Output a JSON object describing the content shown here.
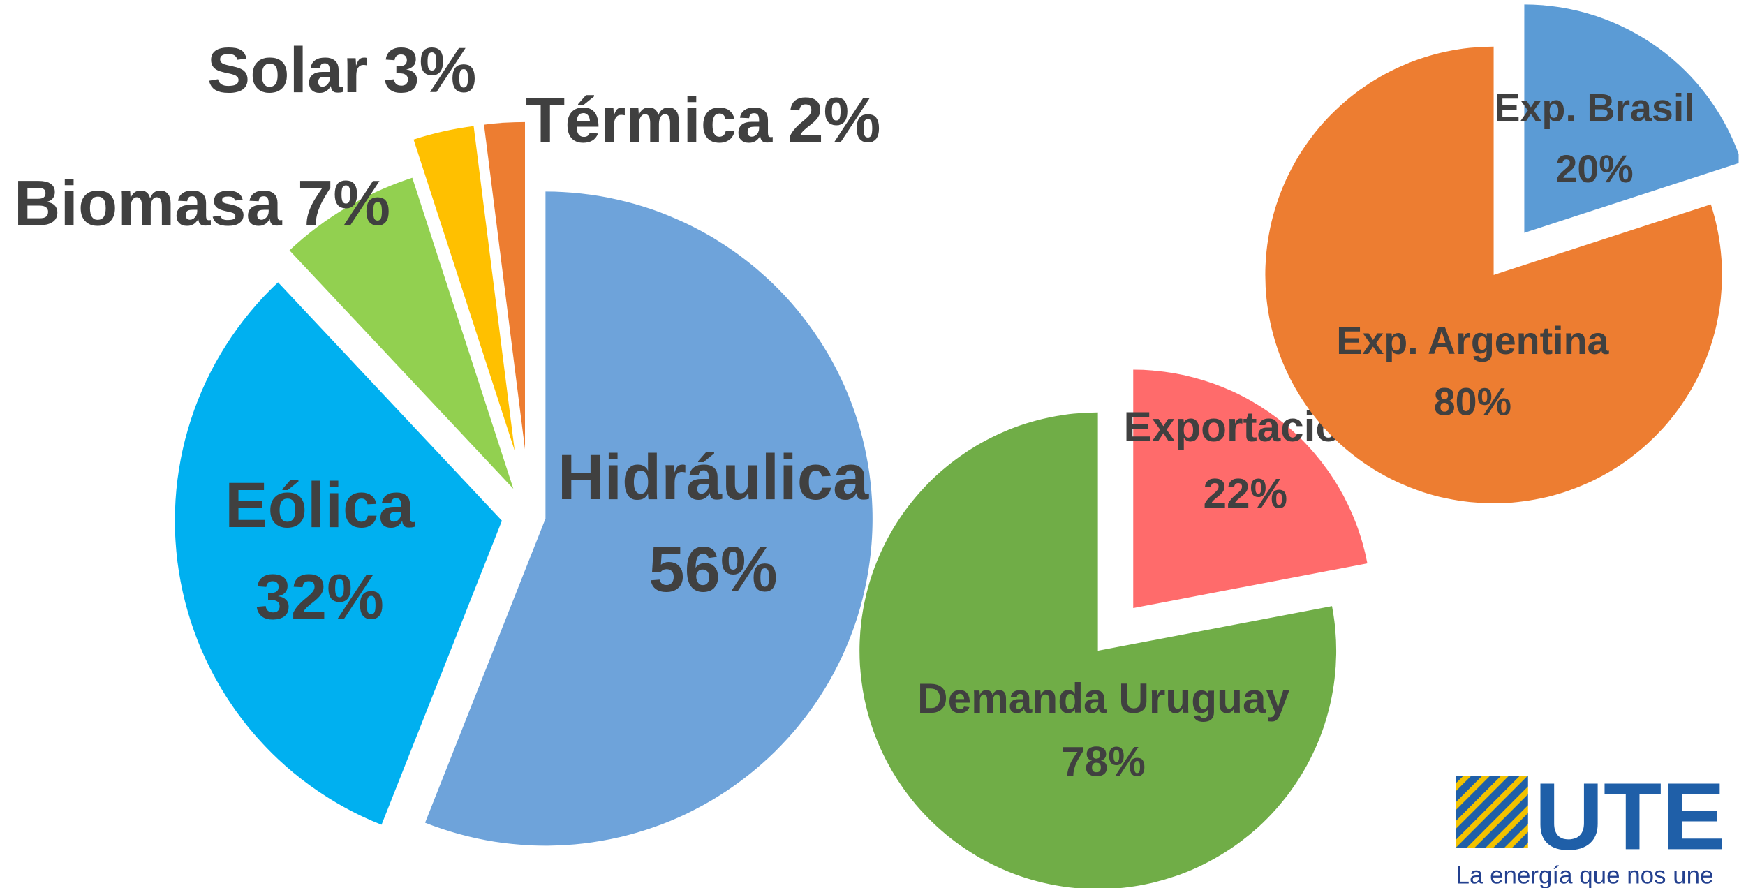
{
  "chart_data": [
    {
      "type": "pie",
      "categories": [
        "Hidráulica",
        "Eólica",
        "Biomasa",
        "Solar",
        "Térmica"
      ],
      "values": [
        56,
        32,
        7,
        3,
        2
      ],
      "value_labels": [
        "56%",
        "32%",
        "7%",
        "3%",
        "2%"
      ],
      "colors": [
        "#6ea3da",
        "#00b0f0",
        "#92d050",
        "#ffc000",
        "#ed7d31"
      ]
    },
    {
      "type": "pie",
      "categories": [
        "Exportación",
        "Demanda Uruguay"
      ],
      "values": [
        22,
        78
      ],
      "value_labels": [
        "22%",
        "78%"
      ],
      "colors": [
        "#ff6b6b",
        "#70ad47"
      ]
    },
    {
      "type": "pie",
      "categories": [
        "Exp. Brasil",
        "Exp. Argentina"
      ],
      "values": [
        20,
        80
      ],
      "value_labels": [
        "20%",
        "80%"
      ],
      "colors": [
        "#5b9bd5",
        "#ed7d31"
      ]
    }
  ],
  "logo": {
    "name": "UTE",
    "tagline": "La energía que nos une"
  }
}
